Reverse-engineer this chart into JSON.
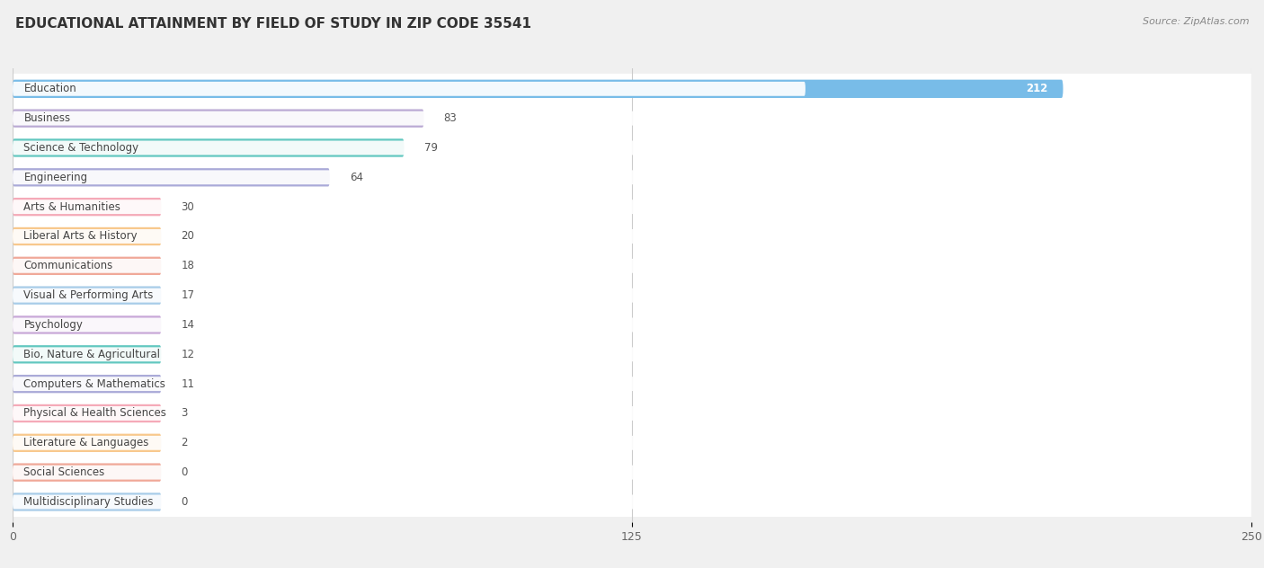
{
  "title": "EDUCATIONAL ATTAINMENT BY FIELD OF STUDY IN ZIP CODE 35541",
  "source": "Source: ZipAtlas.com",
  "categories": [
    "Education",
    "Business",
    "Science & Technology",
    "Engineering",
    "Arts & Humanities",
    "Liberal Arts & History",
    "Communications",
    "Visual & Performing Arts",
    "Psychology",
    "Bio, Nature & Agricultural",
    "Computers & Mathematics",
    "Physical & Health Sciences",
    "Literature & Languages",
    "Social Sciences",
    "Multidisciplinary Studies"
  ],
  "values": [
    212,
    83,
    79,
    64,
    30,
    20,
    18,
    17,
    14,
    12,
    11,
    3,
    2,
    0,
    0
  ],
  "bar_colors": [
    "#78bce8",
    "#bbaad4",
    "#63c8c0",
    "#aaaad8",
    "#f5aab8",
    "#f8c88c",
    "#f0a898",
    "#a8cce8",
    "#c8a8d8",
    "#63c8c0",
    "#aaaad8",
    "#f5aab8",
    "#f8c88c",
    "#f0a898",
    "#a8cce8"
  ],
  "xlim": [
    0,
    250
  ],
  "xticks": [
    0,
    125,
    250
  ],
  "background_color": "#f0f0f0",
  "row_bg_color": "#ffffff",
  "title_fontsize": 11,
  "label_fontsize": 8.5,
  "value_fontsize": 8.5,
  "min_bar_width": 30
}
